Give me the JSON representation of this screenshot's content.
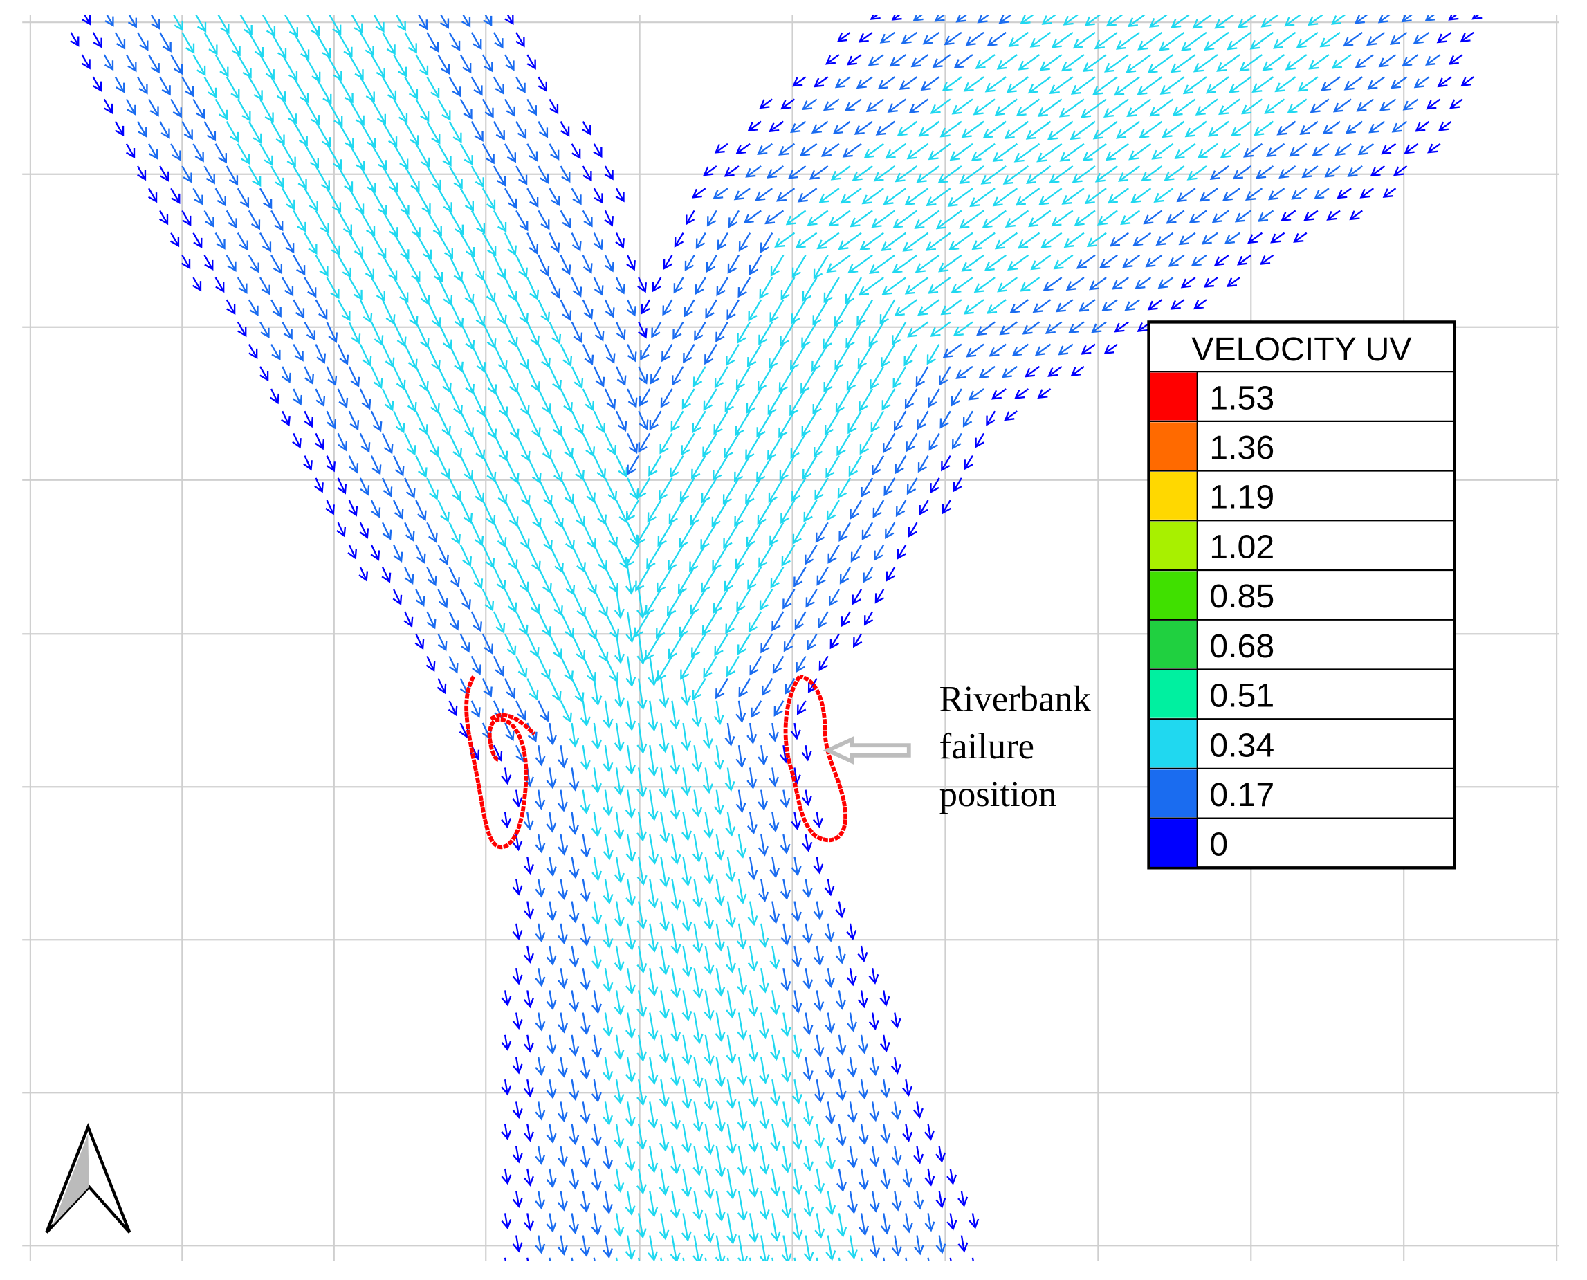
{
  "legend": {
    "title": "VELOCITY UV",
    "items": [
      {
        "value": 1.53,
        "color": "#ff0000"
      },
      {
        "value": 1.36,
        "color": "#ff6a00"
      },
      {
        "value": 1.19,
        "color": "#ffd800"
      },
      {
        "value": 1.02,
        "color": "#a8f000"
      },
      {
        "value": 0.85,
        "color": "#40e000"
      },
      {
        "value": 0.68,
        "color": "#20d040"
      },
      {
        "value": 0.51,
        "color": "#00f0a0"
      },
      {
        "value": 0.34,
        "color": "#20d8f0"
      },
      {
        "value": 0.17,
        "color": "#1a6cf0"
      },
      {
        "value": 0,
        "color": "#0000ff"
      }
    ]
  },
  "annotation": {
    "lines": [
      "Riverbank",
      "failure",
      "position"
    ]
  }
}
